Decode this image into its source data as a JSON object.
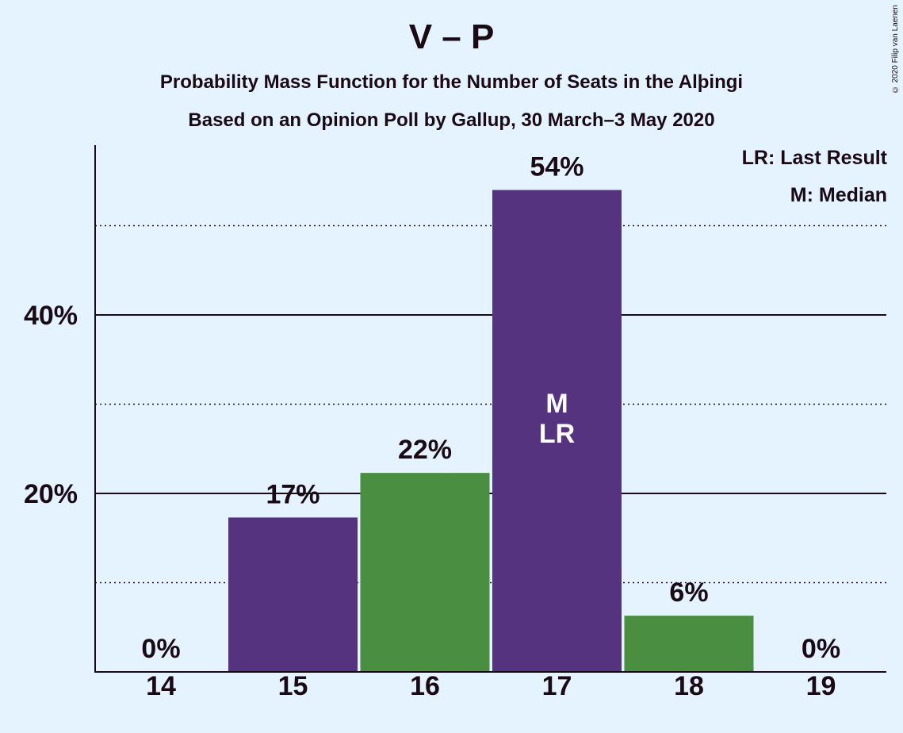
{
  "title": "V – P",
  "subtitle_1": "Probability Mass Function for the Number of Seats in the Alþingi",
  "subtitle_2": "Based on an Opinion Poll by Gallup, 30 March–3 May 2020",
  "copyright": "© 2020 Filip van Laenen",
  "legend": {
    "last_result": "LR: Last Result",
    "median": "M: Median"
  },
  "colors": {
    "background": "#e5f2ff",
    "purple": "#55337f",
    "green": "#4a8f41",
    "text": "#1a0a14"
  },
  "chart_data": {
    "type": "bar",
    "title": "V – P",
    "categories": [
      "14",
      "15",
      "16",
      "17",
      "18",
      "19"
    ],
    "values": [
      0,
      17.3,
      22.3,
      54.0,
      6.3,
      0
    ],
    "value_labels": [
      "0%",
      "17%",
      "22%",
      "54%",
      "6%",
      "0%"
    ],
    "bar_colors": [
      "purple",
      "purple",
      "green",
      "purple",
      "green",
      "purple"
    ],
    "ylim": [
      0,
      59
    ],
    "yticks": [
      {
        "value": 20,
        "label": "20%",
        "style": "solid"
      },
      {
        "value": 40,
        "label": "40%",
        "style": "solid"
      }
    ],
    "minor_gridlines": [
      10,
      30,
      50
    ],
    "bar_annotations": [
      {
        "category": "17",
        "lines": [
          "M",
          "LR"
        ]
      }
    ]
  }
}
